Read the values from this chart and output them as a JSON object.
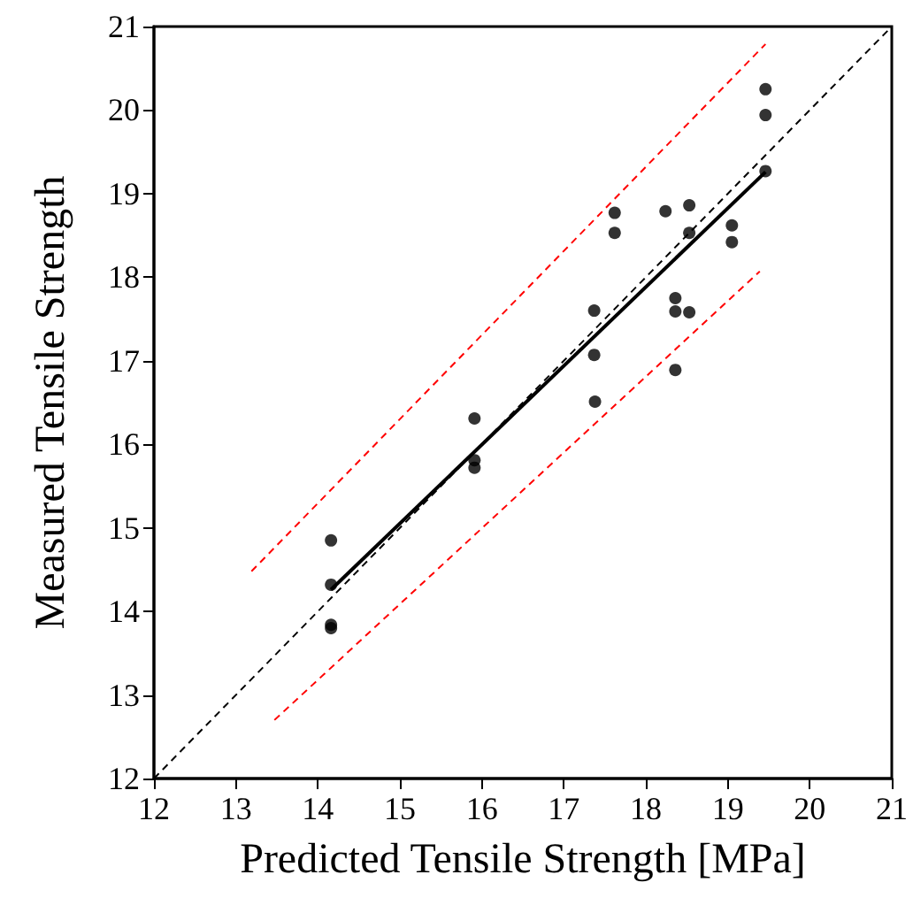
{
  "chart_data": {
    "type": "scatter",
    "xlabel": "Predicted Tensile Strength [MPa]",
    "ylabel": "Measured Tensile Strength",
    "xlim": [
      12,
      21
    ],
    "ylim": [
      12,
      21
    ],
    "xticks": [
      12,
      13,
      14,
      15,
      16,
      17,
      18,
      19,
      20,
      21
    ],
    "yticks": [
      12,
      13,
      14,
      15,
      16,
      17,
      18,
      19,
      20,
      21
    ],
    "grid": false,
    "series": [
      {
        "type": "line",
        "color": "#000000",
        "line_style": "dashed",
        "marker": "none",
        "x": [
          12,
          21
        ],
        "values": [
          12,
          21
        ]
      },
      {
        "type": "line",
        "color": "#ff0000",
        "line_style": "dashed",
        "marker": "none",
        "x": [
          13.19,
          19.46
        ],
        "values": [
          14.48,
          20.79
        ]
      },
      {
        "type": "line",
        "color": "#ff0000",
        "line_style": "dashed",
        "marker": "none",
        "x": [
          13.47,
          19.39
        ],
        "values": [
          12.7,
          18.07
        ]
      },
      {
        "type": "line",
        "color": "#000000",
        "line_style": "solid",
        "marker": "none",
        "x": [
          14.16,
          19.46
        ],
        "values": [
          14.26,
          19.26
        ]
      },
      {
        "color": "#000000",
        "marker": "circle",
        "x": [
          14.16,
          14.16,
          14.16,
          14.16,
          15.91,
          15.91,
          15.91,
          17.37,
          17.37,
          17.38,
          17.62,
          17.62,
          18.24,
          18.53,
          18.53,
          18.53,
          19.05,
          19.05,
          18.36,
          18.36,
          18.36,
          19.46,
          19.46,
          19.46
        ],
        "values": [
          14.85,
          14.32,
          13.8,
          13.84,
          16.31,
          15.81,
          15.72,
          17.6,
          17.07,
          16.51,
          18.77,
          18.53,
          18.79,
          18.86,
          18.53,
          17.58,
          18.62,
          18.42,
          17.75,
          17.59,
          16.89,
          20.25,
          19.94,
          19.27
        ]
      }
    ]
  }
}
